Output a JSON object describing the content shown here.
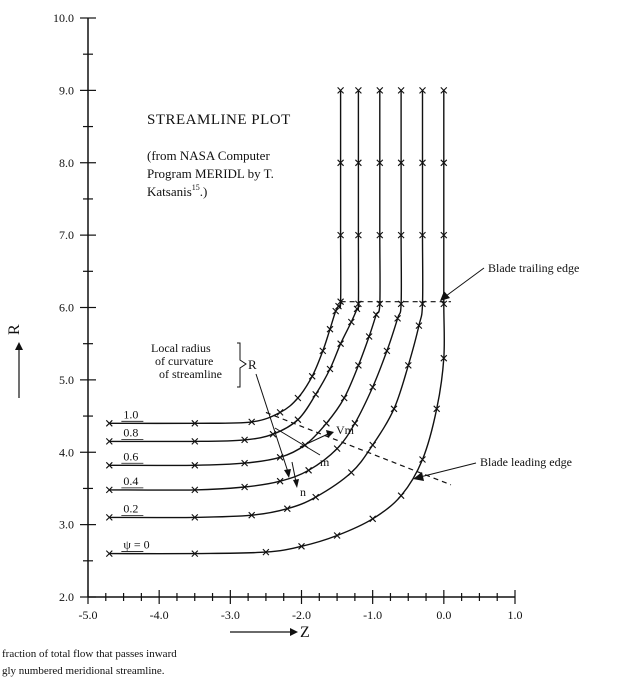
{
  "chart_data": {
    "type": "line",
    "title": "STREAMLINE PLOT",
    "subtitle_lines": [
      "(from NASA Computer",
      "Program MERIDL by T.",
      "Katsanis"
    ],
    "subtitle_ref": "15",
    "subtitle_close": ".)",
    "xlabel": "Z",
    "ylabel": "R",
    "xlim": [
      -5.0,
      1.0
    ],
    "ylim": [
      2.0,
      10.0
    ],
    "xticks": [
      "-5.0",
      "-4.0",
      "-3.0",
      "-2.0",
      "-1.0",
      "0.0",
      "1.0"
    ],
    "yticks": [
      "2.0",
      "3.0",
      "4.0",
      "5.0",
      "6.0",
      "7.0",
      "8.0",
      "9.0",
      "10.0"
    ],
    "series": [
      {
        "name": "ψ = 0",
        "x": [
          -4.7,
          -3.5,
          -2.5,
          -2.0,
          -1.5,
          -1.0,
          -0.6,
          -0.3,
          -0.1,
          0.0,
          0.0,
          0.0,
          0.0,
          0.0
        ],
        "y": [
          2.6,
          2.6,
          2.62,
          2.7,
          2.85,
          3.08,
          3.4,
          3.9,
          4.6,
          5.3,
          6.05,
          7.0,
          8.0,
          9.0
        ]
      },
      {
        "name": "0.2",
        "x": [
          -4.7,
          -3.5,
          -2.7,
          -2.2,
          -1.8,
          -1.3,
          -1.0,
          -0.7,
          -0.5,
          -0.35,
          -0.3,
          -0.3,
          -0.3,
          -0.3
        ],
        "y": [
          3.1,
          3.1,
          3.13,
          3.22,
          3.38,
          3.72,
          4.1,
          4.6,
          5.2,
          5.75,
          6.05,
          7.0,
          8.0,
          9.0
        ]
      },
      {
        "name": "0.4",
        "x": [
          -4.7,
          -3.5,
          -2.8,
          -2.3,
          -1.9,
          -1.5,
          -1.25,
          -1.0,
          -0.8,
          -0.65,
          -0.6,
          -0.6,
          -0.6,
          -0.6
        ],
        "y": [
          3.48,
          3.48,
          3.52,
          3.6,
          3.75,
          4.05,
          4.4,
          4.9,
          5.4,
          5.85,
          6.05,
          7.0,
          8.0,
          9.0
        ]
      },
      {
        "name": "0.6",
        "x": [
          -4.7,
          -3.5,
          -2.8,
          -2.3,
          -1.95,
          -1.65,
          -1.4,
          -1.2,
          -1.05,
          -0.95,
          -0.9,
          -0.9,
          -0.9,
          -0.9
        ],
        "y": [
          3.82,
          3.82,
          3.85,
          3.93,
          4.1,
          4.4,
          4.75,
          5.2,
          5.6,
          5.9,
          6.05,
          7.0,
          8.0,
          9.0
        ]
      },
      {
        "name": "0.8",
        "x": [
          -4.7,
          -3.5,
          -2.8,
          -2.4,
          -2.05,
          -1.8,
          -1.6,
          -1.45,
          -1.3,
          -1.22,
          -1.2,
          -1.2,
          -1.2,
          -1.2
        ],
        "y": [
          4.15,
          4.15,
          4.17,
          4.25,
          4.45,
          4.8,
          5.15,
          5.5,
          5.8,
          5.98,
          6.05,
          7.0,
          8.0,
          9.0
        ]
      },
      {
        "name": "1.0",
        "x": [
          -4.7,
          -3.5,
          -2.7,
          -2.3,
          -2.05,
          -1.85,
          -1.7,
          -1.6,
          -1.52,
          -1.48,
          -1.45,
          -1.45,
          -1.45,
          -1.45
        ],
        "y": [
          4.4,
          4.4,
          4.42,
          4.55,
          4.75,
          5.05,
          5.4,
          5.7,
          5.95,
          6.02,
          6.08,
          7.0,
          8.0,
          9.0
        ]
      }
    ],
    "trailing_edge": {
      "x": [
        -1.45,
        0.1
      ],
      "y": [
        6.08,
        6.08
      ]
    },
    "leading_edge": {
      "x": [
        -2.5,
        0.1
      ],
      "y": [
        4.55,
        3.55
      ]
    },
    "annotations": {
      "local_radius": [
        "Local radius",
        "of curvature",
        "of streamline"
      ],
      "R": "R",
      "m": "m",
      "n": "n",
      "Vm": "Vm",
      "blade_trailing_edge": "Blade trailing edge",
      "blade_leading_edge": "Blade leading edge"
    },
    "footnote_lines": [
      "fraction of total flow that passes inward",
      "gly numbered meridional streamline."
    ],
    "grid": false,
    "legend": "none (series labelled inline at left)"
  }
}
